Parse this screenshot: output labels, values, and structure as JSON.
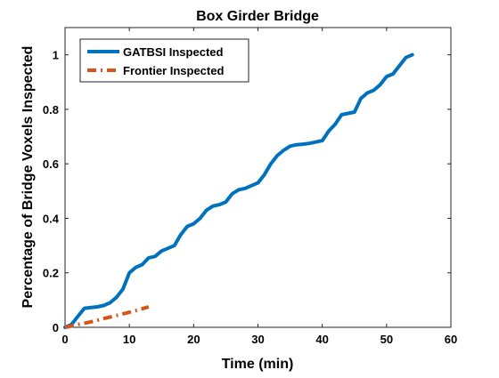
{
  "chart_data": {
    "type": "line",
    "title": "Box Girder Bridge",
    "xlabel": "Time (min)",
    "ylabel": "Percentage of Bridge Voxels Inspected",
    "xlim": [
      0,
      60
    ],
    "ylim": [
      0,
      1.1
    ],
    "x_ticks": [
      0,
      10,
      20,
      30,
      40,
      50,
      60
    ],
    "y_ticks": [
      0,
      0.2,
      0.4,
      0.6,
      0.8,
      1
    ],
    "x_tick_labels": [
      "0",
      "10",
      "20",
      "30",
      "40",
      "50",
      "60"
    ],
    "y_tick_labels": [
      "0",
      "0.2",
      "0.4",
      "0.6",
      "0.8",
      "1"
    ],
    "grid": false,
    "legend_position": "top-left",
    "series": [
      {
        "name": "GATBSI Inspected",
        "color": "#0072BD",
        "style": "solid",
        "x": [
          0,
          1,
          2,
          3,
          5,
          6,
          7,
          8,
          9,
          10,
          11,
          12,
          13,
          14,
          15,
          16,
          17,
          18,
          19,
          20,
          21,
          22,
          23,
          24,
          25,
          26,
          27,
          28,
          29,
          30,
          31,
          32,
          33,
          34,
          35,
          36,
          37,
          38,
          39,
          40,
          41,
          42,
          43,
          44,
          45,
          46,
          47,
          48,
          49,
          50,
          51,
          52,
          53,
          54
        ],
        "y": [
          0,
          0.01,
          0.04,
          0.07,
          0.075,
          0.08,
          0.09,
          0.11,
          0.14,
          0.2,
          0.22,
          0.23,
          0.255,
          0.26,
          0.28,
          0.29,
          0.3,
          0.34,
          0.37,
          0.38,
          0.4,
          0.43,
          0.445,
          0.45,
          0.46,
          0.49,
          0.505,
          0.51,
          0.52,
          0.53,
          0.56,
          0.6,
          0.63,
          0.65,
          0.665,
          0.67,
          0.672,
          0.675,
          0.68,
          0.685,
          0.72,
          0.745,
          0.78,
          0.785,
          0.79,
          0.84,
          0.86,
          0.87,
          0.89,
          0.92,
          0.93,
          0.96,
          0.99,
          1.0
        ]
      },
      {
        "name": "Frontier Inspected",
        "color": "#D95319",
        "style": "dash-dot",
        "x": [
          0,
          2,
          4,
          6,
          8,
          10,
          12,
          13
        ],
        "y": [
          0,
          0.01,
          0.02,
          0.032,
          0.043,
          0.055,
          0.068,
          0.075
        ]
      }
    ]
  }
}
